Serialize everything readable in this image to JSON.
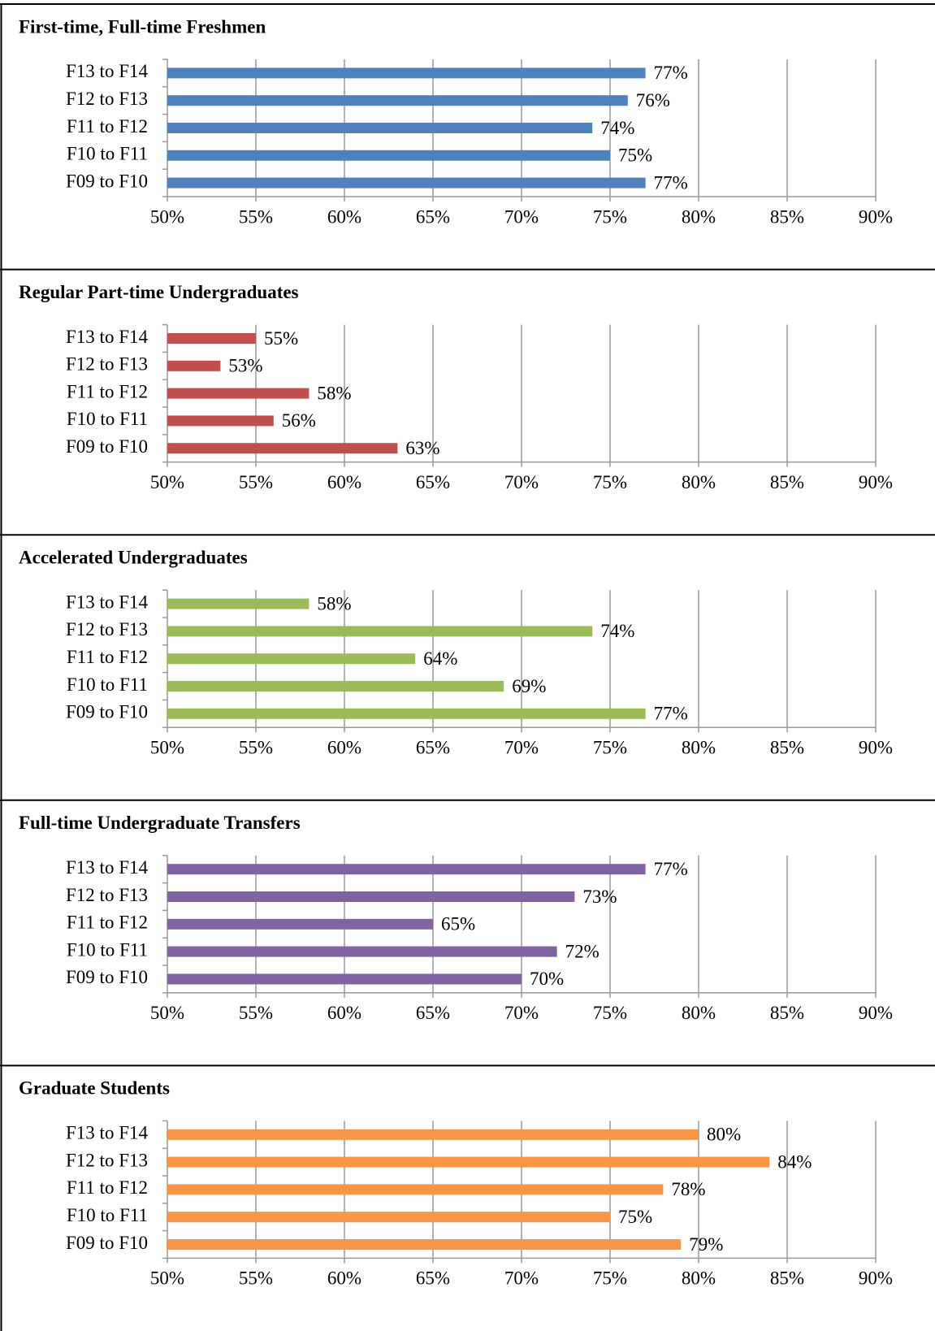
{
  "chart_data": [
    {
      "type": "bar",
      "orientation": "horizontal",
      "title": "First-time, Full-time Freshmen",
      "categories": [
        "F13 to F14",
        "F12 to F13",
        "F11 to F12",
        "F10 to F11",
        "F09 to F10"
      ],
      "values": [
        77,
        76,
        74,
        75,
        77
      ],
      "value_labels": [
        "77%",
        "76%",
        "74%",
        "75%",
        "77%"
      ],
      "color": "#4f81bd",
      "xlim": [
        50,
        90
      ],
      "xticks": [
        {
          "value": 50,
          "label": "50%"
        },
        {
          "value": 55,
          "label": "55%"
        },
        {
          "value": 60,
          "label": "60%"
        },
        {
          "value": 65,
          "label": "65%"
        },
        {
          "value": 70,
          "label": "70%"
        },
        {
          "value": 75,
          "label": "75%"
        },
        {
          "value": 80,
          "label": "80%"
        },
        {
          "value": 85,
          "label": "85%"
        },
        {
          "value": 90,
          "label": "90%"
        }
      ],
      "grid": true
    },
    {
      "type": "bar",
      "orientation": "horizontal",
      "title": "Regular Part-time Undergraduates",
      "categories": [
        "F13 to F14",
        "F12 to F13",
        "F11 to F12",
        "F10 to F11",
        "F09 to F10"
      ],
      "values": [
        55,
        53,
        58,
        56,
        63
      ],
      "value_labels": [
        "55%",
        "53%",
        "58%",
        "56%",
        "63%"
      ],
      "color": "#c0504d",
      "xlim": [
        50,
        90
      ],
      "xticks": [
        {
          "value": 50,
          "label": "50%"
        },
        {
          "value": 55,
          "label": "55%"
        },
        {
          "value": 60,
          "label": "60%"
        },
        {
          "value": 65,
          "label": "65%"
        },
        {
          "value": 70,
          "label": "70%"
        },
        {
          "value": 75,
          "label": "75%"
        },
        {
          "value": 80,
          "label": "80%"
        },
        {
          "value": 85,
          "label": "85%"
        },
        {
          "value": 90,
          "label": "90%"
        }
      ],
      "grid": true
    },
    {
      "type": "bar",
      "orientation": "horizontal",
      "title": "Accelerated Undergraduates",
      "categories": [
        "F13 to F14",
        "F12 to F13",
        "F11 to F12",
        "F10 to F11",
        "F09 to F10"
      ],
      "values": [
        58,
        74,
        64,
        69,
        77
      ],
      "value_labels": [
        "58%",
        "74%",
        "64%",
        "69%",
        "77%"
      ],
      "color": "#9bbb59",
      "xlim": [
        50,
        90
      ],
      "xticks": [
        {
          "value": 50,
          "label": "50%"
        },
        {
          "value": 55,
          "label": "55%"
        },
        {
          "value": 60,
          "label": "60%"
        },
        {
          "value": 65,
          "label": "65%"
        },
        {
          "value": 70,
          "label": "70%"
        },
        {
          "value": 75,
          "label": "75%"
        },
        {
          "value": 80,
          "label": "80%"
        },
        {
          "value": 85,
          "label": "85%"
        },
        {
          "value": 90,
          "label": "90%"
        }
      ],
      "grid": true
    },
    {
      "type": "bar",
      "orientation": "horizontal",
      "title": "Full-time Undergraduate Transfers",
      "categories": [
        "F13 to F14",
        "F12 to F13",
        "F11 to F12",
        "F10 to F11",
        "F09 to F10"
      ],
      "values": [
        77,
        73,
        65,
        72,
        70
      ],
      "value_labels": [
        "77%",
        "73%",
        "65%",
        "72%",
        "70%"
      ],
      "color": "#8064a2",
      "xlim": [
        50,
        90
      ],
      "xticks": [
        {
          "value": 50,
          "label": "50%"
        },
        {
          "value": 55,
          "label": "55%"
        },
        {
          "value": 60,
          "label": "60%"
        },
        {
          "value": 65,
          "label": "65%"
        },
        {
          "value": 70,
          "label": "70%"
        },
        {
          "value": 75,
          "label": "75%"
        },
        {
          "value": 80,
          "label": "80%"
        },
        {
          "value": 85,
          "label": "85%"
        },
        {
          "value": 90,
          "label": "90%"
        }
      ],
      "grid": true
    },
    {
      "type": "bar",
      "orientation": "horizontal",
      "title": "Graduate Students",
      "categories": [
        "F13 to F14",
        "F12 to F13",
        "F11 to F12",
        "F10 to F11",
        "F09 to F10"
      ],
      "values": [
        80,
        84,
        78,
        75,
        79
      ],
      "value_labels": [
        "80%",
        "84%",
        "78%",
        "75%",
        "79%"
      ],
      "color": "#f79646",
      "xlim": [
        50,
        90
      ],
      "xticks": [
        {
          "value": 50,
          "label": "50%"
        },
        {
          "value": 55,
          "label": "55%"
        },
        {
          "value": 60,
          "label": "60%"
        },
        {
          "value": 65,
          "label": "65%"
        },
        {
          "value": 70,
          "label": "70%"
        },
        {
          "value": 75,
          "label": "75%"
        },
        {
          "value": 80,
          "label": "80%"
        },
        {
          "value": 85,
          "label": "85%"
        },
        {
          "value": 90,
          "label": "90%"
        }
      ],
      "grid": true
    }
  ]
}
